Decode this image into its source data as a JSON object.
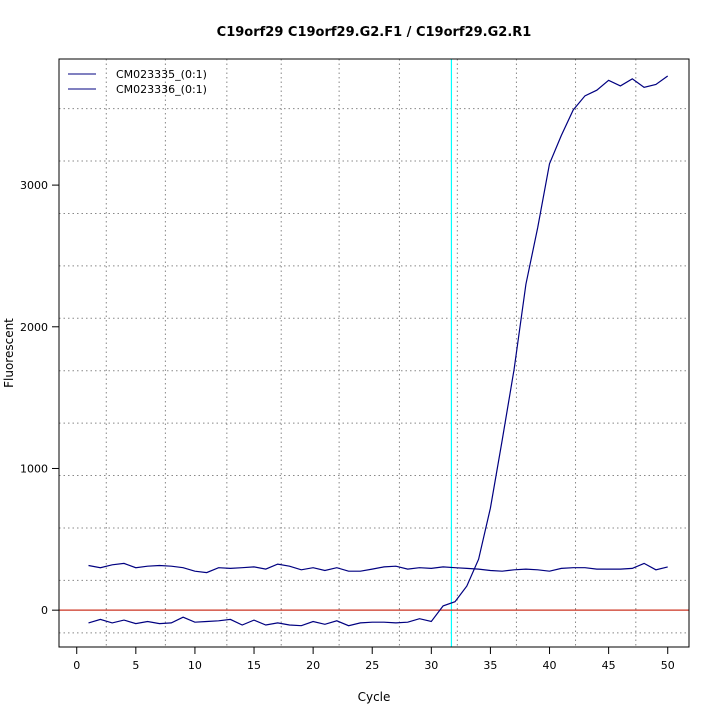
{
  "chart_data": {
    "type": "line",
    "title": "C19orf29  C19orf29.G2.F1 / C19orf29.G2.R1",
    "xlabel": "Cycle",
    "ylabel": "Fluorescent",
    "xlim": [
      -1.5,
      51.8
    ],
    "ylim": [
      -260,
      3890
    ],
    "x_ticks": [
      0,
      5,
      10,
      15,
      20,
      25,
      30,
      35,
      40,
      45,
      50
    ],
    "y_ticks": [
      0,
      1000,
      2000,
      3000
    ],
    "v_grid": [
      2.5,
      7.5,
      12.7,
      17.3,
      22.2,
      27.3,
      32.2,
      37.2,
      42.2,
      47.3
    ],
    "h_grid": [
      -160,
      210,
      580,
      950,
      1320,
      1690,
      2060,
      2430,
      2800,
      3170,
      3540
    ],
    "grid": true,
    "legend_position": "top-left",
    "threshold_x": 31.7,
    "threshold_color": "#00ffff",
    "baseline_y": 0,
    "baseline_color": "#cc3322",
    "series": [
      {
        "name": "CM023335_(0:1)",
        "color": "#000080",
        "x": [
          1,
          2,
          3,
          4,
          5,
          6,
          7,
          8,
          9,
          10,
          11,
          12,
          13,
          14,
          15,
          16,
          17,
          18,
          19,
          20,
          21,
          22,
          23,
          24,
          25,
          26,
          27,
          28,
          29,
          30,
          31,
          32,
          33,
          34,
          35,
          36,
          37,
          38,
          39,
          40,
          41,
          42,
          43,
          44,
          45,
          46,
          47,
          48,
          49,
          50
        ],
        "y": [
          -90,
          -65,
          -90,
          -70,
          -95,
          -80,
          -95,
          -90,
          -50,
          -85,
          -80,
          -75,
          -65,
          -105,
          -70,
          -105,
          -90,
          -105,
          -110,
          -80,
          -100,
          -75,
          -110,
          -90,
          -85,
          -85,
          -90,
          -85,
          -60,
          -80,
          30,
          60,
          170,
          360,
          720,
          1200,
          1700,
          2300,
          2700,
          3150,
          3350,
          3530,
          3630,
          3670,
          3740,
          3700,
          3750,
          3690,
          3710,
          3770
        ]
      },
      {
        "name": "CM023336_(0:1)",
        "color": "#000080",
        "x": [
          1,
          2,
          3,
          4,
          5,
          6,
          7,
          8,
          9,
          10,
          11,
          12,
          13,
          14,
          15,
          16,
          17,
          18,
          19,
          20,
          21,
          22,
          23,
          24,
          25,
          26,
          27,
          28,
          29,
          30,
          31,
          32,
          33,
          34,
          35,
          36,
          37,
          38,
          39,
          40,
          41,
          42,
          43,
          44,
          45,
          46,
          47,
          48,
          49,
          50
        ],
        "y": [
          315,
          300,
          320,
          330,
          300,
          310,
          315,
          310,
          300,
          275,
          265,
          300,
          295,
          300,
          305,
          290,
          325,
          310,
          285,
          300,
          280,
          300,
          275,
          275,
          290,
          305,
          310,
          290,
          300,
          295,
          305,
          300,
          295,
          290,
          280,
          275,
          285,
          290,
          285,
          275,
          295,
          300,
          300,
          290,
          290,
          290,
          295,
          330,
          285,
          305
        ]
      }
    ]
  }
}
